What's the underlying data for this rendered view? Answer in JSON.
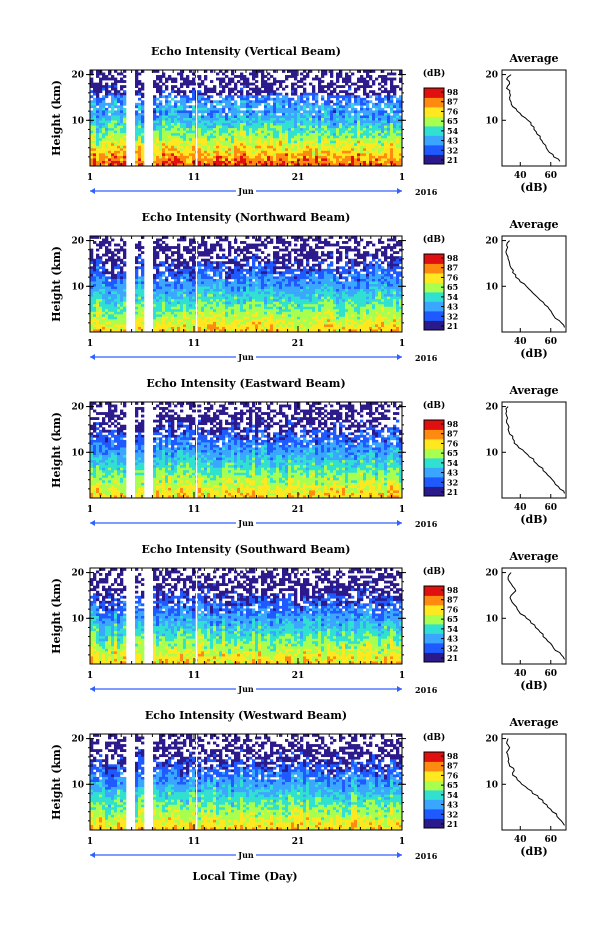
{
  "chart_data": [
    {
      "type": "heatmap",
      "title": "Echo Intensity (Vertical Beam)",
      "ylabel": "Height (km)",
      "yticks": [
        "20",
        "10"
      ],
      "xticks": [
        "1",
        "11",
        "21",
        "1"
      ],
      "month": "Jun",
      "year": "2016",
      "colorbar_unit": "(dB)",
      "colorbar_ticks": [
        "98",
        "87",
        "76",
        "65",
        "54",
        "43",
        "32",
        "21"
      ],
      "colors": [
        "#2b1a8c",
        "#1e5aff",
        "#3aa6ff",
        "#30e0d0",
        "#a8ff50",
        "#ffe820",
        "#ff8a10",
        "#e01010"
      ],
      "profile": {
        "title": "Average",
        "xlabel": "(dB)",
        "xticks": [
          "40",
          "60"
        ],
        "yticks": [
          "20",
          "10"
        ],
        "heights": [
          1,
          2,
          3,
          4,
          5,
          6,
          7,
          8,
          9,
          10,
          11,
          12,
          13,
          14,
          15,
          16,
          17,
          18,
          19,
          20
        ],
        "values": [
          66,
          62,
          59,
          57,
          55,
          53,
          51,
          49,
          47,
          45,
          41,
          38,
          35,
          34,
          33,
          33,
          31,
          33,
          31,
          34
        ]
      }
    },
    {
      "type": "heatmap",
      "title": "Echo Intensity (Northward Beam)",
      "ylabel": "Height (km)",
      "yticks": [
        "20",
        "10"
      ],
      "xticks": [
        "1",
        "11",
        "21",
        "1"
      ],
      "month": "Jun",
      "year": "2016",
      "colorbar_unit": "(dB)",
      "colorbar_ticks": [
        "98",
        "87",
        "76",
        "65",
        "54",
        "43",
        "32",
        "21"
      ],
      "colors": [
        "#2b1a8c",
        "#1e5aff",
        "#3aa6ff",
        "#30e0d0",
        "#a8ff50",
        "#ffe820",
        "#ff8a10",
        "#e01010"
      ],
      "profile": {
        "title": "Average",
        "xlabel": "(dB)",
        "xticks": [
          "40",
          "60"
        ],
        "yticks": [
          "20",
          "10"
        ],
        "heights": [
          1,
          2,
          3,
          4,
          5,
          6,
          7,
          8,
          9,
          10,
          11,
          12,
          13,
          14,
          15,
          16,
          17,
          18,
          19,
          20
        ],
        "values": [
          69,
          67,
          63,
          61,
          59,
          56,
          53,
          50,
          47,
          44,
          40,
          37,
          35,
          34,
          33,
          32,
          31,
          31,
          31,
          33
        ]
      }
    },
    {
      "type": "heatmap",
      "title": "Echo Intensity (Eastward Beam)",
      "ylabel": "Height (km)",
      "yticks": [
        "20",
        "10"
      ],
      "xticks": [
        "1",
        "11",
        "21",
        "1"
      ],
      "month": "Jun",
      "year": "2016",
      "colorbar_unit": "(dB)",
      "colorbar_ticks": [
        "98",
        "87",
        "76",
        "65",
        "54",
        "43",
        "32",
        "21"
      ],
      "colors": [
        "#2b1a8c",
        "#1e5aff",
        "#3aa6ff",
        "#30e0d0",
        "#a8ff50",
        "#ffe820",
        "#ff8a10",
        "#e01010"
      ],
      "profile": {
        "title": "Average",
        "xlabel": "(dB)",
        "xticks": [
          "40",
          "60"
        ],
        "yticks": [
          "20",
          "10"
        ],
        "heights": [
          1,
          2,
          3,
          4,
          5,
          6,
          7,
          8,
          9,
          10,
          11,
          12,
          13,
          14,
          15,
          16,
          17,
          18,
          19,
          20
        ],
        "values": [
          69,
          66,
          63,
          61,
          58,
          55,
          52,
          49,
          46,
          43,
          39,
          36,
          35,
          33,
          32,
          32,
          31,
          31,
          31,
          32
        ]
      }
    },
    {
      "type": "heatmap",
      "title": "Echo Intensity (Southward Beam)",
      "ylabel": "Height (km)",
      "yticks": [
        "20",
        "10"
      ],
      "xticks": [
        "1",
        "11",
        "21",
        "1"
      ],
      "month": "Jun",
      "year": "2016",
      "colorbar_unit": "(dB)",
      "colorbar_ticks": [
        "98",
        "87",
        "76",
        "65",
        "54",
        "43",
        "32",
        "21"
      ],
      "colors": [
        "#2b1a8c",
        "#1e5aff",
        "#3aa6ff",
        "#30e0d0",
        "#a8ff50",
        "#ffe820",
        "#ff8a10",
        "#e01010"
      ],
      "profile": {
        "title": "Average",
        "xlabel": "(dB)",
        "xticks": [
          "40",
          "60"
        ],
        "yticks": [
          "20",
          "10"
        ],
        "heights": [
          1,
          2,
          3,
          4,
          5,
          6,
          7,
          8,
          9,
          10,
          11,
          12,
          13,
          14,
          15,
          16,
          17,
          18,
          19,
          20
        ],
        "values": [
          69,
          67,
          63,
          61,
          58,
          55,
          53,
          50,
          47,
          44,
          40,
          38,
          36,
          34,
          34,
          37,
          35,
          33,
          32,
          34
        ]
      }
    },
    {
      "type": "heatmap",
      "title": "Echo Intensity (Westward Beam)",
      "ylabel": "Height (km)",
      "yticks": [
        "20",
        "10"
      ],
      "xticks": [
        "1",
        "11",
        "21",
        "1"
      ],
      "month": "Jun",
      "year": "2016",
      "colorbar_unit": "(dB)",
      "colorbar_ticks": [
        "98",
        "87",
        "76",
        "65",
        "54",
        "43",
        "32",
        "21"
      ],
      "colors": [
        "#2b1a8c",
        "#1e5aff",
        "#3aa6ff",
        "#30e0d0",
        "#a8ff50",
        "#ffe820",
        "#ff8a10",
        "#e01010"
      ],
      "profile": {
        "title": "Average",
        "xlabel": "(dB)",
        "xticks": [
          "40",
          "60"
        ],
        "yticks": [
          "20",
          "10"
        ],
        "heights": [
          1,
          2,
          3,
          4,
          5,
          6,
          7,
          8,
          9,
          10,
          11,
          12,
          13,
          14,
          15,
          16,
          17,
          18,
          19,
          20
        ],
        "values": [
          69,
          67,
          64,
          61,
          58,
          55,
          52,
          48,
          45,
          41,
          38,
          35,
          36,
          33,
          32,
          32,
          31,
          33,
          31,
          32
        ]
      }
    }
  ],
  "xlabel": "Local Time (Day)"
}
